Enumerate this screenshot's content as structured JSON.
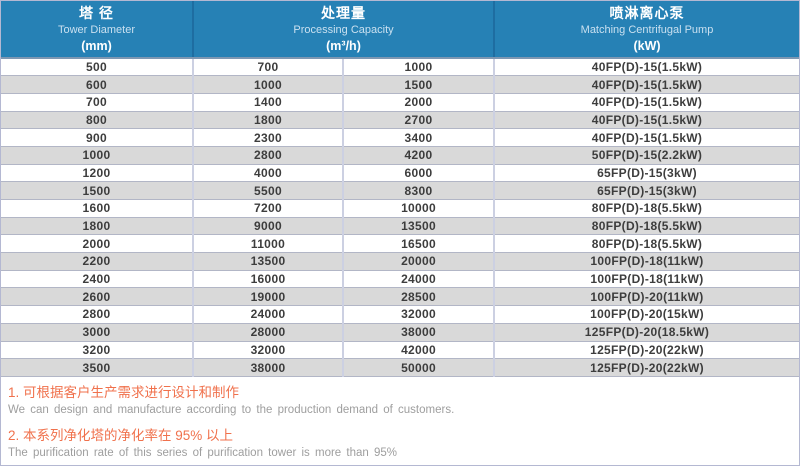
{
  "header": {
    "columns": [
      {
        "zh": "塔 径",
        "en": "Tower Diameter",
        "unit": "(mm)"
      },
      {
        "zh": "处理量",
        "en": "Processing Capacity",
        "unit": "(m³/h)"
      },
      {
        "zh": "喷淋离心泵",
        "en": "Matching Centrifugal Pump",
        "unit": "(kW)"
      }
    ]
  },
  "table": {
    "rows": [
      [
        "500",
        "700",
        "1000",
        "40FP(D)-15(1.5kW)"
      ],
      [
        "600",
        "1000",
        "1500",
        "40FP(D)-15(1.5kW)"
      ],
      [
        "700",
        "1400",
        "2000",
        "40FP(D)-15(1.5kW)"
      ],
      [
        "800",
        "1800",
        "2700",
        "40FP(D)-15(1.5kW)"
      ],
      [
        "900",
        "2300",
        "3400",
        "40FP(D)-15(1.5kW)"
      ],
      [
        "1000",
        "2800",
        "4200",
        "50FP(D)-15(2.2kW)"
      ],
      [
        "1200",
        "4000",
        "6000",
        "65FP(D)-15(3kW)"
      ],
      [
        "1500",
        "5500",
        "8300",
        "65FP(D)-15(3kW)"
      ],
      [
        "1600",
        "7200",
        "10000",
        "80FP(D)-18(5.5kW)"
      ],
      [
        "1800",
        "9000",
        "13500",
        "80FP(D)-18(5.5kW)"
      ],
      [
        "2000",
        "11000",
        "16500",
        "80FP(D)-18(5.5kW)"
      ],
      [
        "2200",
        "13500",
        "20000",
        "100FP(D)-18(11kW)"
      ],
      [
        "2400",
        "16000",
        "24000",
        "100FP(D)-18(11kW)"
      ],
      [
        "2600",
        "19000",
        "28500",
        "100FP(D)-20(11kW)"
      ],
      [
        "2800",
        "24000",
        "32000",
        "100FP(D)-20(15kW)"
      ],
      [
        "3000",
        "28000",
        "38000",
        "125FP(D)-20(18.5kW)"
      ],
      [
        "3200",
        "32000",
        "42000",
        "125FP(D)-20(22kW)"
      ],
      [
        "3500",
        "38000",
        "50000",
        "125FP(D)-20(22kW)"
      ]
    ]
  },
  "notes": [
    {
      "zh": "1. 可根据客户生产需求进行设计和制作",
      "en": "We can design and manufacture according to the production demand of customers."
    },
    {
      "zh": "2. 本系列净化塔的净化率在 95% 以上",
      "en": "The purification rate of this series of purification tower is more than 95%"
    }
  ],
  "colors": {
    "header_bg": "#2681b5",
    "header_divider": "#1e6da1",
    "row_alt_bg": "#d9d9d9",
    "row_border": "#b2b6c6",
    "column_divider": "#ccd0e2",
    "outer_border": "#b4b8d2",
    "note_accent": "#f0714c",
    "note_text": "#9e9e9e",
    "cell_text": "#3d3d3d"
  }
}
